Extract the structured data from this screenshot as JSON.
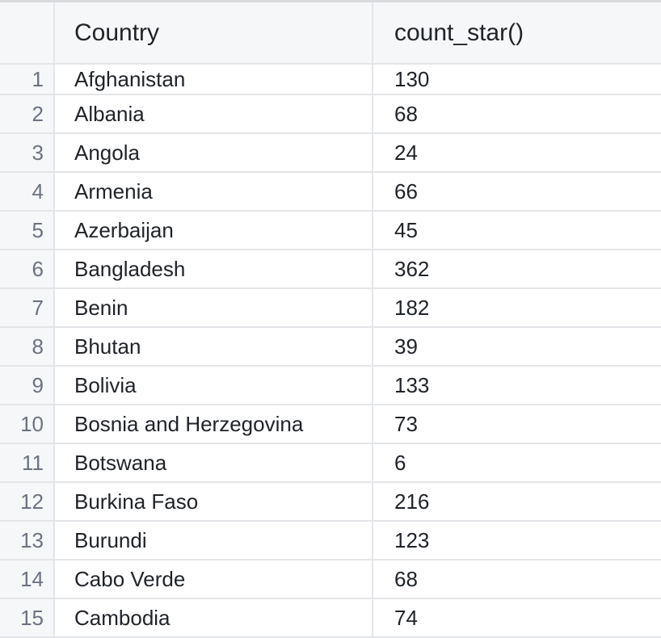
{
  "table": {
    "columns": [
      "Country",
      "count_star()"
    ],
    "rows": [
      {
        "index": "1",
        "country": "Afghanistan",
        "count": "130"
      },
      {
        "index": "2",
        "country": "Albania",
        "count": "68"
      },
      {
        "index": "3",
        "country": "Angola",
        "count": "24"
      },
      {
        "index": "4",
        "country": "Armenia",
        "count": "66"
      },
      {
        "index": "5",
        "country": "Azerbaijan",
        "count": "45"
      },
      {
        "index": "6",
        "country": "Bangladesh",
        "count": "362"
      },
      {
        "index": "7",
        "country": "Benin",
        "count": "182"
      },
      {
        "index": "8",
        "country": "Bhutan",
        "count": "39"
      },
      {
        "index": "9",
        "country": "Bolivia",
        "count": "133"
      },
      {
        "index": "10",
        "country": "Bosnia and Herzegovina",
        "count": "73"
      },
      {
        "index": "11",
        "country": "Botswana",
        "count": "6"
      },
      {
        "index": "12",
        "country": "Burkina Faso",
        "count": "216"
      },
      {
        "index": "13",
        "country": "Burundi",
        "count": "123"
      },
      {
        "index": "14",
        "country": "Cabo Verde",
        "count": "68"
      },
      {
        "index": "15",
        "country": "Cambodia",
        "count": "74"
      }
    ]
  }
}
